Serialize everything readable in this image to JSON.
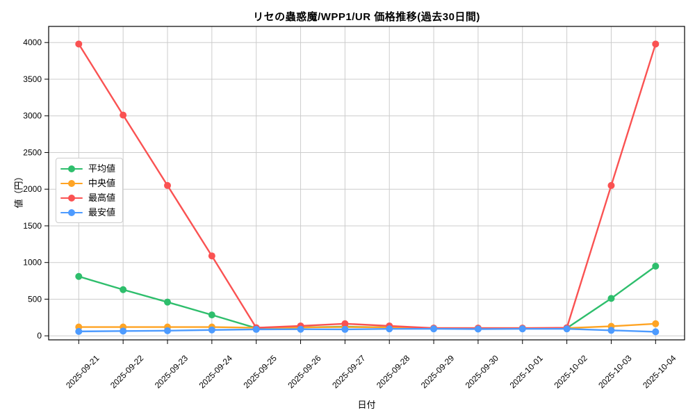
{
  "chart_data": {
    "type": "line",
    "title": "リセの蟲惑魔/WPP1/UR 価格推移(過去30日間)",
    "xlabel": "日付",
    "ylabel": "値（円）",
    "categories": [
      "2025-09-21",
      "2025-09-22",
      "2025-09-23",
      "2025-09-24",
      "2025-09-25",
      "2025-09-26",
      "2025-09-27",
      "2025-09-28",
      "2025-09-29",
      "2025-09-30",
      "2025-10-01",
      "2025-10-02",
      "2025-10-03",
      "2025-10-04"
    ],
    "series": [
      {
        "name": "平均値",
        "color": "#2EBE6C",
        "values": [
          810,
          630,
          460,
          285,
          105,
          115,
          125,
          115,
          100,
          100,
          100,
          105,
          510,
          950
        ]
      },
      {
        "name": "中央値",
        "color": "#FFA424",
        "values": [
          120,
          120,
          120,
          120,
          110,
          115,
          120,
          115,
          105,
          105,
          105,
          105,
          130,
          165
        ]
      },
      {
        "name": "最高値",
        "color": "#FA5252",
        "values": [
          3980,
          3010,
          2050,
          1090,
          110,
          135,
          165,
          135,
          105,
          105,
          105,
          110,
          2050,
          3980
        ]
      },
      {
        "name": "最安値",
        "color": "#4D9BFF",
        "values": [
          60,
          65,
          70,
          80,
          88,
          90,
          88,
          95,
          95,
          92,
          95,
          95,
          75,
          55
        ]
      }
    ],
    "yticks": [
      0,
      500,
      1000,
      1500,
      2000,
      2500,
      3000,
      3500,
      4000
    ],
    "ylim": [
      -55,
      4220
    ],
    "grid": true,
    "grid_color": "#cccccc",
    "axis_color": "#000000",
    "legend_position": "center-left",
    "x_tick_rotation": 45
  }
}
